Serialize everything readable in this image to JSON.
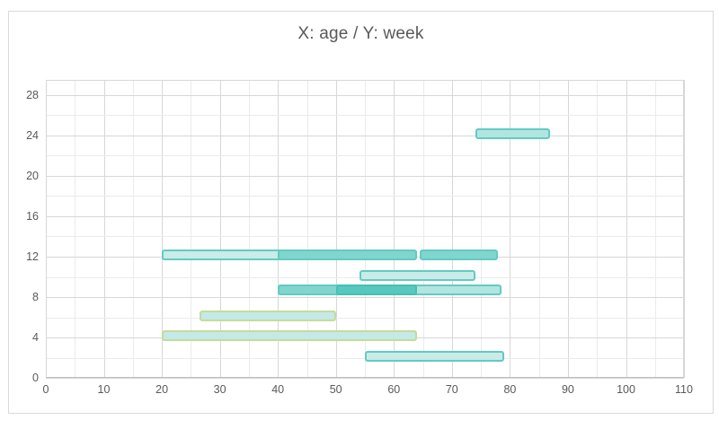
{
  "header": {
    "title": "X: age / Y: week"
  },
  "chart_data": {
    "type": "bar",
    "subtype": "horizontal-range-bars",
    "title": "X: age / Y: week",
    "xlabel": "age",
    "ylabel": "week",
    "x_axis": {
      "min": 0,
      "max": 110,
      "major_step": 10,
      "minor_step": 5,
      "ticks": [
        0,
        10,
        20,
        30,
        40,
        50,
        60,
        70,
        80,
        90,
        100,
        110
      ]
    },
    "y_axis": {
      "min": 0,
      "max": 29.5,
      "major_step": 4,
      "minor_step": 2,
      "ticks": [
        0,
        4,
        8,
        12,
        16,
        20,
        24,
        28
      ]
    },
    "grid": {
      "major_color": "#d7d7d7",
      "minor_color": "#ebebeb"
    },
    "bars": [
      {
        "week": 24,
        "age_start": 74,
        "age_end": 87,
        "shade": "lightmed",
        "border": "teal"
      },
      {
        "week": 12,
        "age_start": 20,
        "age_end": 64,
        "shade": "light",
        "border": "teal"
      },
      {
        "week": 12,
        "age_start": 40,
        "age_end": 64,
        "shade": "medium",
        "border": "teal"
      },
      {
        "week": 12,
        "age_start": 64.5,
        "age_end": 78,
        "shade": "medium",
        "border": "teal"
      },
      {
        "week": 10,
        "age_start": 54,
        "age_end": 74,
        "shade": "light",
        "border": "teal"
      },
      {
        "week": 8.5,
        "age_start": 40,
        "age_end": 78.5,
        "shade": "lightmed",
        "border": "teal"
      },
      {
        "week": 8.5,
        "age_start": 40,
        "age_end": 64,
        "shade": "medium",
        "border": "teal"
      },
      {
        "week": 8.5,
        "age_start": 50,
        "age_end": 64,
        "shade": "dark",
        "border": "teal-dark"
      },
      {
        "week": 6,
        "age_start": 26.5,
        "age_end": 50,
        "shade": "pale",
        "border": "green"
      },
      {
        "week": 4,
        "age_start": 20,
        "age_end": 64,
        "shade": "pale",
        "border": "green"
      },
      {
        "week": 2,
        "age_start": 55,
        "age_end": 79,
        "shade": "light",
        "border": "teal"
      }
    ],
    "colors": {
      "fill_light": "#c9ece8",
      "fill_lightmed": "#b3e5e0",
      "fill_medium": "#80d6ce",
      "fill_dark": "#58c8be",
      "fill_pale": "#c5e9e6",
      "border_teal": "#62cbc2",
      "border_teal_dark": "#45c0b5",
      "border_green": "#c3dc9b",
      "title_color": "#595959",
      "axis_label_color": "#595959"
    }
  }
}
